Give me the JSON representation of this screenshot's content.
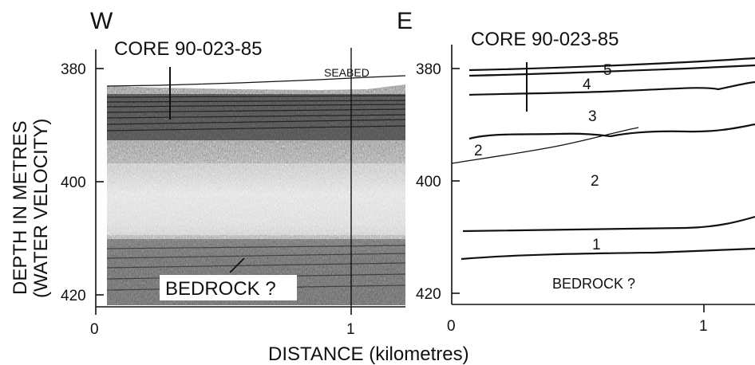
{
  "left_panel": {
    "direction_label": "W",
    "core_label": "CORE 90-023-85",
    "seabed_label": "SEABED",
    "bedrock_label": "BEDROCK ?",
    "y_ticks": [
      "380",
      "400",
      "420"
    ],
    "x_ticks": [
      "0",
      "1"
    ]
  },
  "right_panel": {
    "direction_label": "E",
    "core_label": "CORE 90-023-85",
    "bedrock_label": "BEDROCK ?",
    "y_ticks": [
      "380",
      "400",
      "420"
    ],
    "x_ticks": [
      "0",
      "1"
    ],
    "unit_labels": [
      "5",
      "4",
      "3",
      "2",
      "2",
      "1"
    ]
  },
  "axes": {
    "y_label_line1": "DEPTH IN METRES",
    "y_label_line2": "(WATER VELOCITY)",
    "x_label": "DISTANCE (kilometres)"
  }
}
